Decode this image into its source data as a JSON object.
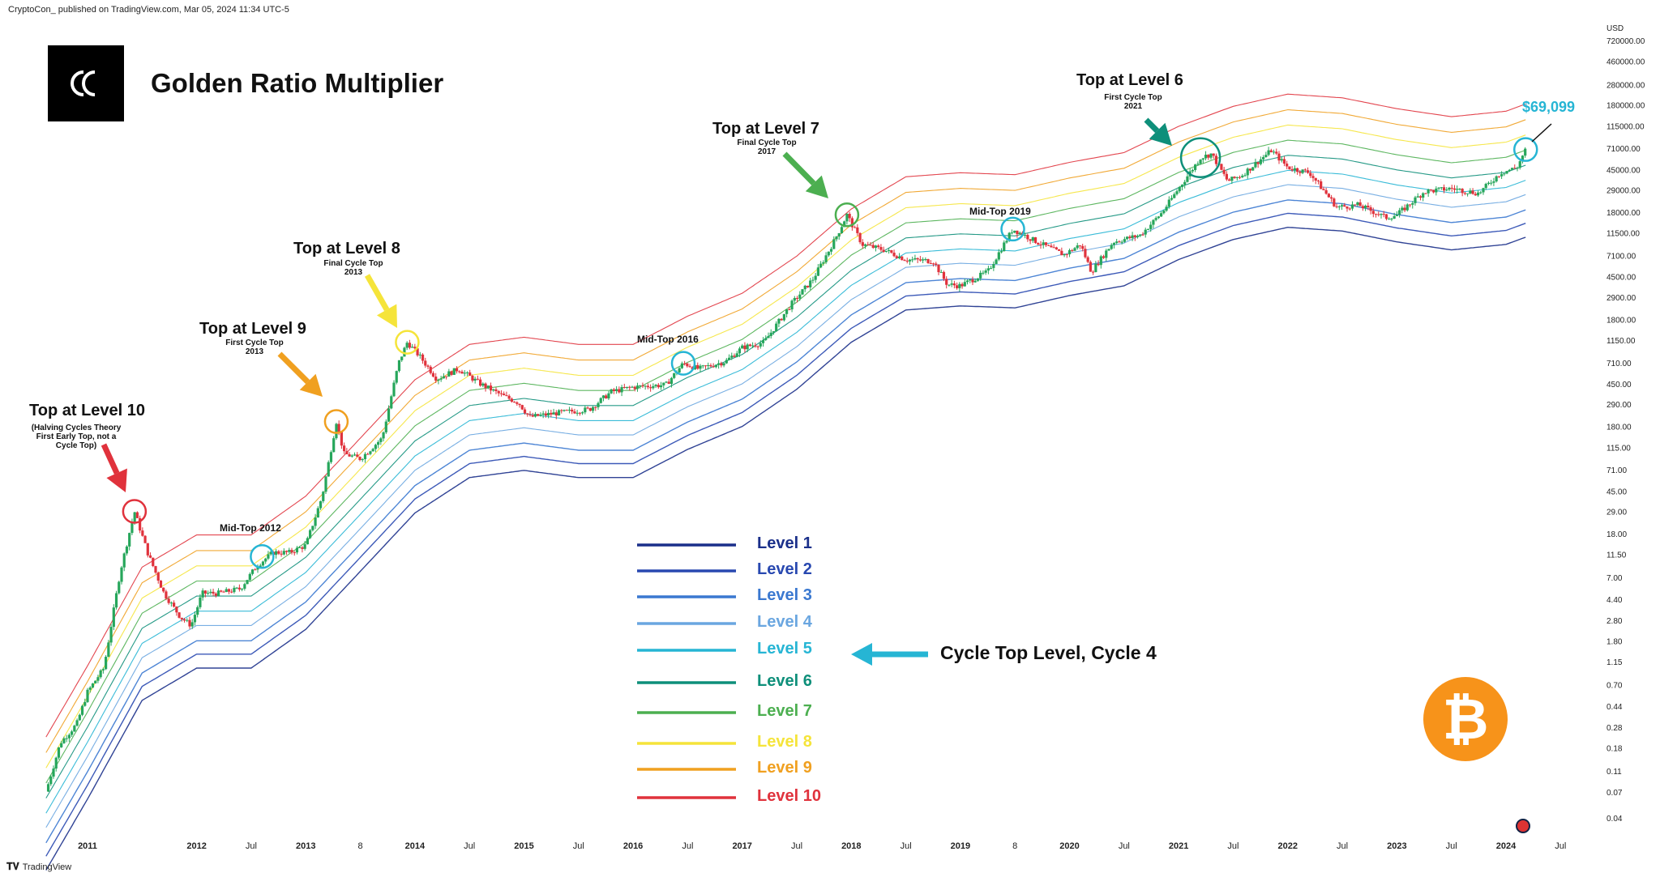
{
  "header": {
    "published": "CryptoCon_ published on TradingView.com, Mar 05, 2024 11:34 UTC-5"
  },
  "footer": {
    "brand": "TradingView"
  },
  "colors": {
    "level1": "#1a2f8a",
    "level2": "#2848b0",
    "level3": "#3a78d0",
    "level4": "#6aa6e0",
    "level5": "#26b5d4",
    "level6": "#0e8f7a",
    "level7": "#4caf50",
    "level8": "#f5e43a",
    "level9": "#f0a020",
    "level10": "#e0323c",
    "up": "#26a65b",
    "down": "#e0323c",
    "btc": "#f7931a"
  },
  "icons": {
    "logo": "cryptocon-logo-icon",
    "btc": "bitcoin-icon",
    "flag": "us-flag-icon"
  },
  "chart_data": {
    "type": "line",
    "title": "Golden Ratio Multiplier",
    "price_tag": "$69,099",
    "currency": "USD",
    "yscale": "log",
    "ylim": [
      0.03,
      800000
    ],
    "y_ticks": [
      "720000.00",
      "460000.00",
      "280000.00",
      "180000.00",
      "115000.00",
      "71000.00",
      "45000.00",
      "29000.00",
      "18000.00",
      "11500.00",
      "7100.00",
      "4500.00",
      "2900.00",
      "1800.00",
      "1150.00",
      "710.00",
      "450.00",
      "290.00",
      "180.00",
      "115.00",
      "71.00",
      "45.00",
      "29.00",
      "18.00",
      "11.50",
      "7.00",
      "4.40",
      "2.80",
      "1.80",
      "1.15",
      "0.70",
      "0.44",
      "0.28",
      "0.18",
      "0.11",
      "0.07",
      "0.04"
    ],
    "x_ticks": [
      {
        "label": "2011",
        "t": 2011.0
      },
      {
        "label": "2012",
        "t": 2012.0
      },
      {
        "label": "Jul",
        "t": 2012.5
      },
      {
        "label": "2013",
        "t": 2013.0
      },
      {
        "label": "8",
        "t": 2013.5
      },
      {
        "label": "2014",
        "t": 2014.0
      },
      {
        "label": "Jul",
        "t": 2014.5
      },
      {
        "label": "2015",
        "t": 2015.0
      },
      {
        "label": "Jul",
        "t": 2015.5
      },
      {
        "label": "2016",
        "t": 2016.0
      },
      {
        "label": "Jul",
        "t": 2016.5
      },
      {
        "label": "2017",
        "t": 2017.0
      },
      {
        "label": "Jul",
        "t": 2017.5
      },
      {
        "label": "2018",
        "t": 2018.0
      },
      {
        "label": "Jul",
        "t": 2018.5
      },
      {
        "label": "2019",
        "t": 2019.0
      },
      {
        "label": "8",
        "t": 2019.5
      },
      {
        "label": "2020",
        "t": 2020.0
      },
      {
        "label": "Jul",
        "t": 2020.5
      },
      {
        "label": "2021",
        "t": 2021.0
      },
      {
        "label": "Jul",
        "t": 2021.5
      },
      {
        "label": "2022",
        "t": 2022.0
      },
      {
        "label": "Jul",
        "t": 2022.5
      },
      {
        "label": "2023",
        "t": 2023.0
      },
      {
        "label": "Jul",
        "t": 2023.5
      },
      {
        "label": "2024",
        "t": 2024.0
      },
      {
        "label": "Jul",
        "t": 2024.5
      }
    ],
    "price": [
      [
        2010.6,
        0.06
      ],
      [
        2010.75,
        0.2
      ],
      [
        2010.9,
        0.3
      ],
      [
        2011.0,
        0.6
      ],
      [
        2011.15,
        1.0
      ],
      [
        2011.3,
        8
      ],
      [
        2011.43,
        29
      ],
      [
        2011.55,
        12
      ],
      [
        2011.7,
        5
      ],
      [
        2011.85,
        3
      ],
      [
        2011.95,
        2.5
      ],
      [
        2012.05,
        5
      ],
      [
        2012.2,
        5
      ],
      [
        2012.4,
        5.5
      ],
      [
        2012.55,
        9
      ],
      [
        2012.7,
        12
      ],
      [
        2012.85,
        12
      ],
      [
        2013.0,
        14
      ],
      [
        2013.15,
        40
      ],
      [
        2013.28,
        200
      ],
      [
        2013.35,
        100
      ],
      [
        2013.5,
        90
      ],
      [
        2013.7,
        140
      ],
      [
        2013.85,
        700
      ],
      [
        2013.93,
        1100
      ],
      [
        2014.05,
        800
      ],
      [
        2014.2,
        500
      ],
      [
        2014.4,
        620
      ],
      [
        2014.6,
        450
      ],
      [
        2014.8,
        350
      ],
      [
        2014.95,
        300
      ],
      [
        2015.05,
        220
      ],
      [
        2015.3,
        240
      ],
      [
        2015.6,
        260
      ],
      [
        2015.8,
        380
      ],
      [
        2016.0,
        420
      ],
      [
        2016.3,
        440
      ],
      [
        2016.46,
        700
      ],
      [
        2016.6,
        620
      ],
      [
        2016.85,
        730
      ],
      [
        2017.0,
        980
      ],
      [
        2017.2,
        1100
      ],
      [
        2017.45,
        2500
      ],
      [
        2017.65,
        4300
      ],
      [
        2017.85,
        10000
      ],
      [
        2017.96,
        17000
      ],
      [
        2018.1,
        9000
      ],
      [
        2018.3,
        8000
      ],
      [
        2018.5,
        6500
      ],
      [
        2018.75,
        6300
      ],
      [
        2018.88,
        3800
      ],
      [
        2019.0,
        3700
      ],
      [
        2019.25,
        5000
      ],
      [
        2019.48,
        12500
      ],
      [
        2019.7,
        9500
      ],
      [
        2019.95,
        7200
      ],
      [
        2020.1,
        9000
      ],
      [
        2020.2,
        5000
      ],
      [
        2020.4,
        9500
      ],
      [
        2020.65,
        11000
      ],
      [
        2020.85,
        18000
      ],
      [
        2021.0,
        30000
      ],
      [
        2021.2,
        58000
      ],
      [
        2021.3,
        63000
      ],
      [
        2021.45,
        35000
      ],
      [
        2021.58,
        40000
      ],
      [
        2021.85,
        68000
      ],
      [
        2022.0,
        47000
      ],
      [
        2022.2,
        42000
      ],
      [
        2022.45,
        20000
      ],
      [
        2022.65,
        21000
      ],
      [
        2022.9,
        16000
      ],
      [
        2023.0,
        17000
      ],
      [
        2023.25,
        28000
      ],
      [
        2023.5,
        30000
      ],
      [
        2023.75,
        27000
      ],
      [
        2023.95,
        42000
      ],
      [
        2024.1,
        47000
      ],
      [
        2024.18,
        69099
      ]
    ],
    "levels": [
      {
        "name": "Level 1",
        "mult": 1.0
      },
      {
        "name": "Level 2",
        "mult": 1.35
      },
      {
        "name": "Level 3",
        "mult": 1.8
      },
      {
        "name": "Level 4",
        "mult": 2.5
      },
      {
        "name": "Level 5",
        "mult": 3.4
      },
      {
        "name": "Level 6",
        "mult": 4.7
      },
      {
        "name": "Level 7",
        "mult": 6.5
      },
      {
        "name": "Level 8",
        "mult": 9.0
      },
      {
        "name": "Level 9",
        "mult": 12.5
      },
      {
        "name": "Level 10",
        "mult": 17.5
      }
    ],
    "base_band": [
      [
        2010.6,
        0.012
      ],
      [
        2011.0,
        0.06
      ],
      [
        2011.5,
        0.5
      ],
      [
        2012.0,
        1.0
      ],
      [
        2012.5,
        1.0
      ],
      [
        2013.0,
        2.3
      ],
      [
        2013.5,
        8
      ],
      [
        2014.0,
        28
      ],
      [
        2014.5,
        60
      ],
      [
        2015.0,
        70
      ],
      [
        2015.5,
        60
      ],
      [
        2016.0,
        60
      ],
      [
        2016.5,
        110
      ],
      [
        2017.0,
        180
      ],
      [
        2017.5,
        400
      ],
      [
        2018.0,
        1100
      ],
      [
        2018.5,
        2200
      ],
      [
        2019.0,
        2400
      ],
      [
        2019.5,
        2300
      ],
      [
        2020.0,
        3000
      ],
      [
        2020.5,
        3700
      ],
      [
        2021.0,
        6500
      ],
      [
        2021.5,
        10000
      ],
      [
        2022.0,
        13000
      ],
      [
        2022.5,
        12000
      ],
      [
        2023.0,
        9500
      ],
      [
        2023.5,
        8000
      ],
      [
        2024.0,
        9000
      ],
      [
        2024.18,
        10500
      ]
    ],
    "annotations": [
      {
        "title": "Top at Level 10",
        "sub": "(Halving Cycles Theory\nFirst Early Top, not a Cycle Top)",
        "color": "#e0323c"
      },
      {
        "title": "Top at Level 9",
        "sub": "First Cycle Top 2013",
        "color": "#f0a020"
      },
      {
        "title": "Top at Level 8",
        "sub": "Final Cycle Top 2013",
        "color": "#f5e43a"
      },
      {
        "title": "Top at Level 7",
        "sub": "Final Cycle Top 2017",
        "color": "#4caf50"
      },
      {
        "title": "Top at Level 6",
        "sub": "First Cycle Top 2021",
        "color": "#0e8f7a"
      },
      {
        "title": "Mid-Top 2012"
      },
      {
        "title": "Mid-Top 2016"
      },
      {
        "title": "Mid-Top 2019"
      }
    ],
    "cycle_label": "Cycle Top Level, Cycle 4"
  }
}
